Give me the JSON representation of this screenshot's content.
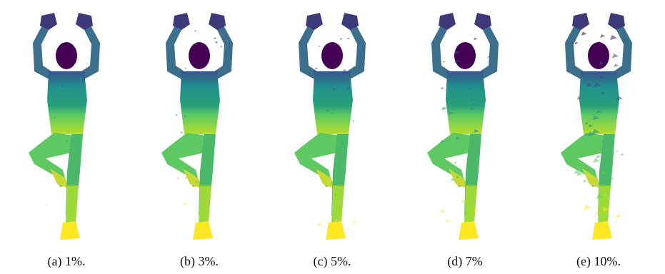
{
  "figure": {
    "panels": [
      {
        "caption": "(a) 1%.",
        "noise_level": 0.01
      },
      {
        "caption": "(b) 3%.",
        "noise_level": 0.03
      },
      {
        "caption": "(c) 5%.",
        "noise_level": 0.05
      },
      {
        "caption": "(d) 7%",
        "noise_level": 0.07
      },
      {
        "caption": "(e) 10%.",
        "noise_level": 0.1
      }
    ],
    "colormap": [
      "#440154",
      "#3b528b",
      "#21908c",
      "#5ec962",
      "#fde725"
    ]
  }
}
